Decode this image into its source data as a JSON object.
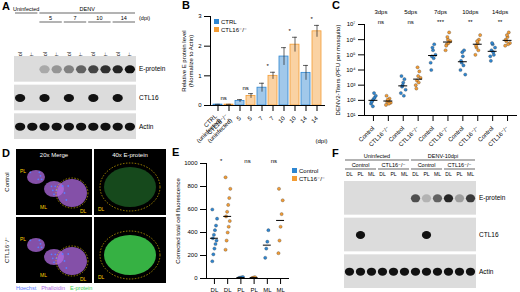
{
  "blots": [
    {
      "panel": "A",
      "header": [
        {
          "text": "Uninfected",
          "cols": [
            {
              "text": null,
              "lanes": [
                "Control",
                "CTL16⁻/⁻"
              ]
            }
          ]
        },
        {
          "text": "DENV",
          "cols": [
            {
              "text": "5",
              "lanes": [
                "Control",
                "CTL16⁻/⁻"
              ]
            },
            {
              "text": "7",
              "lanes": [
                "Control",
                "CTL16⁻/⁻"
              ]
            },
            {
              "text": "10",
              "lanes": [
                "Control",
                "CTL16⁻/⁻"
              ]
            },
            {
              "text": "14",
              "lanes": [
                "Control",
                "CTL16⁻/⁻"
              ]
            }
          ]
        }
      ],
      "unit": "(dpi)",
      "rows": [
        {
          "name": "E-protein",
          "bands": [
            0,
            0,
            0.25,
            0.35,
            0.45,
            0.6,
            0.75,
            0.85,
            0.9,
            1
          ]
        },
        {
          "name": "CTL16",
          "bands": [
            1,
            0,
            1,
            0,
            1,
            0,
            1,
            0,
            1,
            0
          ]
        },
        {
          "name": "Actin",
          "bands": [
            1,
            1,
            1,
            1,
            1,
            1,
            1,
            1,
            1,
            1
          ]
        }
      ]
    },
    {
      "panel": "F",
      "header": [
        {
          "text": "Uninfected",
          "cols": [
            {
              "text": "Control",
              "lanes": [
                "DL",
                "PL",
                "ML"
              ]
            },
            {
              "text": "CTL16⁻/⁻",
              "lanes": [
                "DL",
                "PL",
                "ML"
              ]
            }
          ]
        },
        {
          "text": "DENV-10dpi",
          "cols": [
            {
              "text": "Control",
              "lanes": [
                "DL",
                "PL",
                "ML"
              ]
            },
            {
              "text": "CTL16⁻/⁻",
              "lanes": [
                "DL",
                "PL",
                "ML"
              ]
            }
          ]
        }
      ],
      "rows": [
        {
          "name": "E-protein",
          "bands": [
            0,
            0,
            0,
            0,
            0,
            0,
            0.7,
            0.2,
            0.6,
            0.9,
            0.3,
            0.8
          ]
        },
        {
          "name": "CTL16",
          "bands": [
            0,
            1,
            0,
            0,
            0,
            0,
            0,
            1,
            0,
            0,
            0,
            0
          ]
        },
        {
          "name": "Actin",
          "bands": [
            1,
            1,
            1,
            1,
            1,
            1,
            1,
            1,
            1,
            1,
            1,
            1
          ]
        }
      ]
    }
  ],
  "images": {
    "panel": "D",
    "columns": [
      "20x Merge",
      "40x E-protein"
    ],
    "rows": [
      "Control",
      "CTL16⁻/⁻"
    ],
    "region_labels": [
      [
        "PL",
        "ML",
        "DL"
      ],
      [
        "DL"
      ]
    ],
    "stains": [
      {
        "name": "Hoechst",
        "color": "#5b7cff"
      },
      {
        "name": "Phalloidin",
        "color": "#b06be0"
      },
      {
        "name": "E-protein",
        "color": "#3fd04f"
      }
    ]
  },
  "chart_data": [
    {
      "panel": "B",
      "type": "bar",
      "y_label": "Relative E protein level (Normalize to Actin)",
      "x_label": "(dpi)",
      "categories": [
        "CTRL (uninfected)",
        "CTL16⁻/⁻ (uninfected)",
        "5",
        "5",
        "7",
        "7",
        "10",
        "10",
        "14",
        "14"
      ],
      "series": [
        {
          "name": "CTRL",
          "color": "#2e86d1",
          "values": [
            0.03,
            null,
            0.15,
            null,
            0.6,
            null,
            1.65,
            null,
            1.1,
            null
          ],
          "errors": [
            0.01,
            null,
            0.05,
            null,
            0.15,
            null,
            0.3,
            null,
            0.25,
            null
          ]
        },
        {
          "name": "CTL16⁻/⁻",
          "color": "#f39c34",
          "values": [
            null,
            0.03,
            null,
            0.32,
            null,
            1.0,
            null,
            2.05,
            null,
            2.5
          ],
          "errors": [
            null,
            0.01,
            null,
            0.08,
            null,
            0.12,
            null,
            0.25,
            null,
            0.2
          ]
        }
      ],
      "annotations": [
        "ns",
        "ns",
        "*",
        "*",
        "*"
      ],
      "ylim": [
        0,
        3
      ],
      "yticks": [
        0,
        1,
        2,
        3
      ],
      "legend": "top-left"
    },
    {
      "panel": "C",
      "type": "scatter",
      "log": "y",
      "y_label": "DENV2-Titers (PFU per mosquito)",
      "groups": [
        "3dps",
        "5dps",
        "7dps",
        "10dps",
        "14dps"
      ],
      "categories": [
        "Control",
        "CTL16⁻/⁻",
        "Control",
        "CTL16⁻/⁻",
        "Control",
        "CTL16⁻/⁻",
        "Control",
        "CTL16⁻/⁻",
        "Control",
        "CTL16⁻/⁻"
      ],
      "series": [
        {
          "color": "#2e86d1",
          "values": [
            [
              60,
              90,
              120,
              150,
              200,
              80,
              40,
              300
            ],
            null,
            [
              300,
              800,
              1500,
              2500,
              500,
              4000,
              1000,
              200
            ],
            null,
            [
              30000,
              80000,
              200000,
              500000,
              100000,
              10000,
              300000,
              60000
            ],
            null,
            [
              10000,
              30000,
              80000,
              200000,
              5000,
              40000,
              150000,
              20000
            ],
            null,
            [
              80000,
              200000,
              500000,
              100000,
              300000,
              40000,
              600000,
              150000
            ],
            null
          ],
          "medians": [
            100,
            null,
            900,
            null,
            90000,
            null,
            35000,
            null,
            170000,
            null
          ]
        },
        {
          "color": "#f39c34",
          "values": [
            null,
            [
              50,
              80,
              100,
              130,
              70,
              200,
              110,
              60
            ],
            null,
            [
              1000,
              2000,
              4000,
              8000,
              3000,
              600,
              15000,
              1500
            ],
            null,
            [
              200000,
              500000,
              1000000,
              3000000,
              800000,
              400000,
              1500000,
              600000
            ],
            null,
            [
              100000,
              300000,
              600000,
              1000000,
              2000000,
              400000,
              800000,
              200000
            ],
            null,
            [
              400000,
              800000,
              1500000,
              3000000,
              600000,
              1000000,
              2000000,
              500000
            ]
          ],
          "medians": [
            null,
            90,
            null,
            2500,
            null,
            700000,
            null,
            500000,
            null,
            900000
          ]
        }
      ],
      "annotations": [
        "ns",
        "ns",
        "***",
        "**",
        "**"
      ],
      "ylim": [
        10,
        10000000
      ],
      "yticks": [
        {
          "value": 10,
          "label": "10¹"
        },
        {
          "value": 100,
          "label": "10²"
        },
        {
          "value": 1000,
          "label": "10³"
        },
        {
          "value": 10000,
          "label": "10⁴"
        },
        {
          "value": 100000,
          "label": "10⁵"
        },
        {
          "value": 1000000,
          "label": "10⁶"
        },
        {
          "value": 10000000,
          "label": "10⁷"
        }
      ]
    },
    {
      "panel": "E",
      "type": "scatter",
      "y_label": "Corrected total cell fluorescence",
      "categories": [
        "DL",
        "DL",
        "PL",
        "PL",
        "ML",
        "ML"
      ],
      "series": [
        {
          "name": "Control",
          "color": "#2e86d1",
          "values": [
            [
              150,
              210,
              260,
              300,
              330,
              350,
              380,
              420,
              460,
              520,
              600
            ],
            null,
            [
              4,
              6,
              8,
              10,
              12
            ],
            null,
            [
              180,
              260,
              320,
              420
            ],
            null
          ],
          "medians": [
            350,
            null,
            8,
            null,
            290,
            null
          ]
        },
        {
          "name": "CTL16⁻/⁻",
          "color": "#f39c34",
          "values": [
            null,
            [
              250,
              330,
              400,
              450,
              500,
              540,
              580,
              640,
              700,
              780,
              880
            ],
            null,
            [
              3,
              6,
              9,
              11
            ],
            null,
            [
              220,
              330,
              450,
              560,
              680,
              780
            ]
          ],
          "medians": [
            null,
            540,
            null,
            7.5,
            null,
            505
          ]
        }
      ],
      "annotations": [
        "*",
        "ns",
        "ns"
      ],
      "ylim": [
        0,
        1000
      ],
      "yticks": [
        0,
        200,
        400,
        600,
        800,
        1000
      ],
      "legend": "top-right"
    }
  ]
}
